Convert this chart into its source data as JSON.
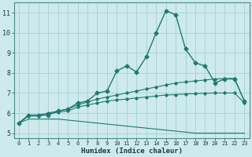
{
  "xlabel": "Humidex (Indice chaleur)",
  "background_color": "#ceeaed",
  "grid_color": "#aad4d8",
  "line_color": "#1e7a70",
  "x_values": [
    0,
    1,
    2,
    3,
    4,
    5,
    6,
    7,
    8,
    9,
    10,
    11,
    12,
    13,
    14,
    15,
    16,
    17,
    18,
    19,
    20,
    21,
    22,
    23
  ],
  "series": {
    "main": [
      5.5,
      5.9,
      5.9,
      5.9,
      6.1,
      6.2,
      6.5,
      6.6,
      7.0,
      7.1,
      8.1,
      8.35,
      8.05,
      8.8,
      10.0,
      11.1,
      10.9,
      9.2,
      8.5,
      8.35,
      7.5,
      7.7,
      7.7,
      6.6
    ],
    "upper": [
      5.5,
      5.9,
      5.9,
      6.0,
      6.1,
      6.2,
      6.4,
      6.55,
      6.7,
      6.8,
      6.9,
      7.0,
      7.1,
      7.2,
      7.3,
      7.4,
      7.5,
      7.55,
      7.6,
      7.65,
      7.7,
      7.72,
      7.73,
      6.6
    ],
    "mid": [
      5.5,
      5.85,
      5.85,
      5.95,
      6.05,
      6.1,
      6.3,
      6.4,
      6.5,
      6.6,
      6.65,
      6.7,
      6.75,
      6.8,
      6.85,
      6.9,
      6.92,
      6.95,
      6.97,
      6.99,
      7.0,
      7.0,
      7.0,
      6.5
    ],
    "lower": [
      5.5,
      5.7,
      5.7,
      5.7,
      5.7,
      5.65,
      5.6,
      5.55,
      5.5,
      5.45,
      5.4,
      5.35,
      5.3,
      5.25,
      5.2,
      5.15,
      5.1,
      5.05,
      5.0,
      5.0,
      5.0,
      5.0,
      5.0,
      5.0
    ]
  },
  "ylim": [
    4.75,
    11.5
  ],
  "yticks": [
    5,
    6,
    7,
    8,
    9,
    10,
    11
  ],
  "xlim": [
    -0.5,
    23.5
  ],
  "xticks": [
    0,
    1,
    2,
    3,
    4,
    5,
    6,
    7,
    8,
    9,
    10,
    11,
    12,
    13,
    14,
    15,
    16,
    17,
    18,
    19,
    20,
    21,
    22,
    23
  ]
}
